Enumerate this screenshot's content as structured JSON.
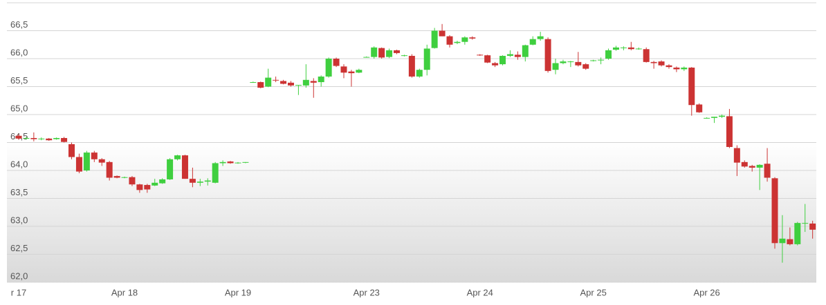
{
  "chart_data": {
    "type": "candlestick",
    "categories": [
      "r 17",
      null,
      null,
      null,
      null,
      null,
      null,
      null,
      null,
      null,
      null,
      null,
      null,
      null,
      "Apr 18",
      null,
      null,
      null,
      null,
      null,
      null,
      null,
      null,
      null,
      null,
      null,
      null,
      null,
      null,
      "Apr 19",
      null,
      null,
      null,
      null,
      null,
      null,
      null,
      null,
      null,
      null,
      null,
      null,
      null,
      null,
      null,
      null,
      "Apr 23",
      null,
      null,
      null,
      null,
      null,
      null,
      null,
      null,
      null,
      null,
      null,
      null,
      null,
      null,
      "Apr 24",
      null,
      null,
      null,
      null,
      null,
      null,
      null,
      null,
      null,
      null,
      null,
      null,
      null,
      null,
      "Apr 25",
      null,
      null,
      null,
      null,
      null,
      null,
      null,
      null,
      null,
      null,
      null,
      null,
      null,
      null,
      "Apr 26",
      null,
      null,
      null,
      null,
      null,
      null,
      null,
      null,
      null,
      null,
      null,
      null,
      null,
      null
    ],
    "open": [
      64.62,
      64.57,
      64.58,
      64.56,
      64.57,
      64.56,
      64.58,
      64.47,
      64.24,
      64.0,
      64.32,
      64.2,
      64.15,
      63.9,
      63.87,
      63.88,
      63.75,
      63.74,
      63.73,
      63.77,
      63.84,
      64.2,
      64.27,
      63.85,
      63.78,
      63.8,
      63.78,
      64.13,
      64.16,
      64.13,
      64.14,
      65.58,
      65.58,
      65.5,
      65.62,
      65.6,
      65.57,
      65.52,
      65.52,
      65.6,
      65.58,
      65.68,
      66.0,
      65.86,
      65.77,
      65.75,
      66.03,
      66.03,
      66.19,
      66.03,
      66.15,
      66.05,
      66.05,
      65.68,
      65.8,
      66.19,
      66.5,
      66.4,
      66.28,
      66.3,
      66.38,
      66.07,
      66.06,
      65.92,
      65.9,
      66.05,
      66.07,
      66.03,
      66.25,
      66.35,
      66.35,
      65.8,
      65.92,
      65.94,
      65.94,
      65.9,
      65.96,
      65.97,
      66.0,
      66.16,
      66.19,
      66.2,
      66.18,
      66.17,
      65.94,
      65.95,
      65.88,
      65.84,
      65.81,
      65.84,
      65.18,
      64.94,
      64.94,
      64.96,
      64.97,
      64.4,
      64.15,
      64.08,
      64.05,
      64.12,
      63.86,
      62.7,
      62.77,
      62.68,
      63.05,
      63.05
    ],
    "high": [
      64.65,
      64.6,
      64.68,
      64.59,
      64.58,
      64.59,
      64.6,
      64.5,
      64.3,
      64.35,
      64.35,
      64.22,
      64.17,
      63.91,
      63.89,
      63.9,
      63.76,
      63.76,
      63.85,
      63.86,
      64.22,
      64.28,
      64.28,
      64.05,
      63.85,
      63.86,
      64.15,
      64.18,
      64.17,
      64.15,
      64.15,
      65.59,
      65.59,
      65.82,
      65.68,
      65.62,
      65.6,
      65.53,
      65.9,
      65.65,
      65.7,
      66.02,
      66.02,
      65.9,
      65.8,
      65.82,
      66.04,
      66.22,
      66.2,
      66.18,
      66.16,
      66.07,
      66.08,
      65.82,
      66.25,
      66.55,
      66.62,
      66.42,
      66.32,
      66.4,
      66.4,
      66.08,
      66.07,
      65.94,
      66.06,
      66.15,
      66.13,
      66.25,
      66.4,
      66.48,
      66.38,
      66.0,
      65.98,
      65.96,
      66.12,
      65.92,
      65.98,
      66.02,
      66.18,
      66.23,
      66.22,
      66.3,
      66.2,
      66.2,
      65.96,
      65.97,
      65.9,
      65.86,
      65.86,
      65.85,
      65.2,
      64.95,
      64.96,
      65.0,
      65.1,
      64.45,
      64.18,
      64.1,
      64.11,
      64.4,
      63.88,
      63.2,
      62.98,
      63.08,
      63.4,
      63.1
    ],
    "low": [
      64.55,
      64.55,
      64.52,
      64.54,
      64.53,
      64.55,
      64.5,
      64.2,
      63.95,
      63.98,
      64.15,
      64.08,
      63.82,
      63.86,
      63.86,
      63.72,
      63.6,
      63.6,
      63.72,
      63.76,
      63.83,
      64.18,
      63.85,
      63.7,
      63.72,
      63.73,
      63.77,
      64.08,
      64.12,
      64.12,
      64.13,
      65.57,
      65.47,
      65.49,
      65.58,
      65.54,
      65.5,
      65.35,
      65.48,
      65.3,
      65.5,
      65.66,
      65.85,
      65.65,
      65.5,
      65.74,
      66.02,
      66.0,
      66.0,
      66.01,
      66.08,
      66.04,
      65.66,
      65.66,
      65.7,
      66.18,
      66.4,
      66.2,
      66.26,
      66.25,
      66.34,
      66.05,
      65.92,
      65.85,
      65.88,
      66.03,
      65.98,
      65.95,
      66.24,
      66.32,
      65.75,
      65.72,
      65.9,
      65.85,
      65.86,
      65.8,
      65.95,
      65.9,
      65.98,
      66.14,
      66.15,
      66.15,
      66.16,
      65.93,
      65.82,
      65.86,
      65.82,
      65.76,
      65.78,
      64.98,
      65.03,
      64.93,
      64.85,
      64.94,
      64.4,
      63.9,
      64.05,
      63.98,
      63.65,
      63.8,
      62.6,
      62.35,
      62.66,
      62.66,
      62.9,
      62.78
    ],
    "close": [
      64.57,
      64.58,
      64.56,
      64.57,
      64.54,
      64.58,
      64.51,
      64.24,
      63.98,
      64.32,
      64.2,
      64.14,
      63.87,
      63.87,
      63.88,
      63.75,
      63.65,
      63.66,
      63.78,
      63.84,
      64.2,
      64.27,
      63.85,
      63.78,
      63.8,
      63.82,
      64.13,
      64.15,
      64.13,
      64.14,
      64.15,
      65.58,
      65.48,
      65.66,
      65.61,
      65.55,
      65.52,
      65.53,
      65.62,
      65.57,
      65.68,
      66.0,
      65.87,
      65.75,
      65.74,
      65.8,
      66.03,
      66.2,
      66.02,
      66.15,
      66.1,
      66.06,
      65.68,
      65.8,
      66.18,
      66.5,
      66.4,
      66.25,
      66.3,
      66.38,
      66.36,
      66.06,
      65.93,
      65.88,
      66.05,
      66.08,
      66.03,
      66.24,
      66.35,
      66.4,
      65.78,
      65.92,
      65.95,
      65.95,
      65.88,
      65.82,
      65.97,
      65.98,
      66.15,
      66.2,
      66.2,
      66.17,
      66.18,
      65.94,
      65.92,
      65.88,
      65.85,
      65.81,
      65.84,
      65.17,
      65.04,
      64.94,
      64.96,
      64.98,
      64.42,
      64.14,
      64.07,
      64.05,
      64.1,
      63.87,
      62.7,
      62.78,
      62.68,
      63.06,
      63.06,
      62.94
    ],
    "up_color": "#3fcf3f",
    "down_color": "#cc3333",
    "ylim": [
      62,
      67
    ],
    "yticks": [
      {
        "value": 62,
        "label": "62,0"
      },
      {
        "value": 62.5,
        "label": "62,5"
      },
      {
        "value": 63,
        "label": "63,0"
      },
      {
        "value": 63.5,
        "label": "63,5"
      },
      {
        "value": 64,
        "label": "64,0"
      },
      {
        "value": 64.5,
        "label": "64,5"
      },
      {
        "value": 65,
        "label": "65,0"
      },
      {
        "value": 65.5,
        "label": "65,5"
      },
      {
        "value": 66,
        "label": "66,0"
      },
      {
        "value": 66.5,
        "label": "66,5"
      }
    ],
    "grid": true
  }
}
